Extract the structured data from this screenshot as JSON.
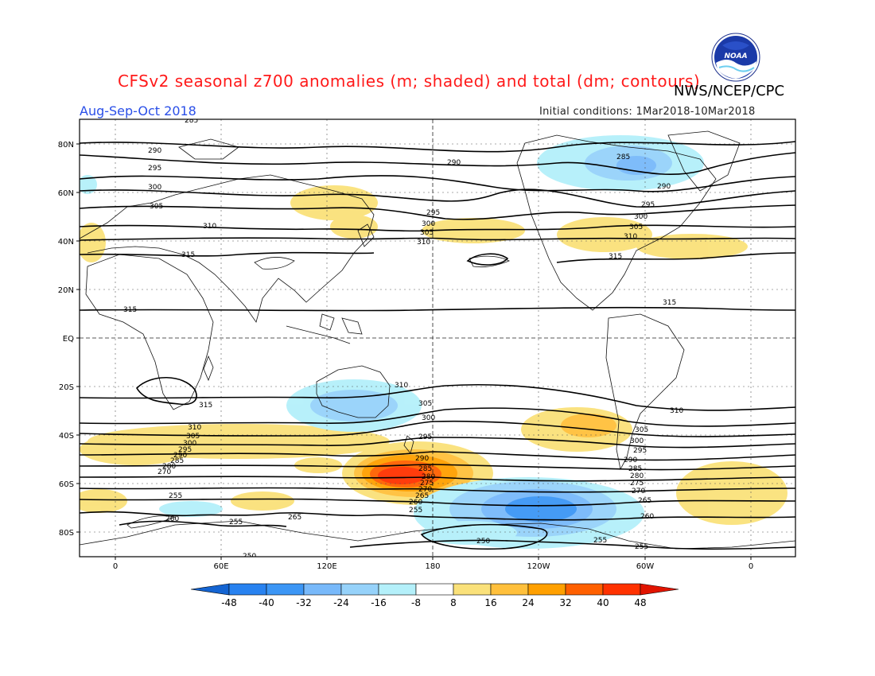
{
  "header": {
    "title": "CFSv2 seasonal z700 anomalies (m; shaded) and total (dm; contours)",
    "agency": "NWS/NCEP/CPC",
    "period": "Aug-Sep-Oct 2018",
    "initial_conditions": "Initial conditions: 1Mar2018-10Mar2018",
    "logo_text": "NOAA"
  },
  "axes": {
    "lat_labels": [
      "80N",
      "60N",
      "40N",
      "20N",
      "EQ",
      "20S",
      "40S",
      "60S",
      "80S"
    ],
    "lon_labels": [
      "0",
      "60E",
      "120E",
      "180",
      "120W",
      "60W",
      "0"
    ]
  },
  "colorbar": {
    "ticks": [
      "-48",
      "-40",
      "-32",
      "-24",
      "-16",
      "-8",
      "8",
      "16",
      "24",
      "32",
      "40",
      "48"
    ],
    "colors": [
      "#1464d2",
      "#2882f0",
      "#3c96f5",
      "#78b9fa",
      "#96d2fa",
      "#b4f0fa",
      "#ffffff",
      "#fae17a",
      "#ffc03c",
      "#ffa000",
      "#ff6000",
      "#ff3200",
      "#e11400"
    ]
  },
  "contour_labels": [
    "250",
    "255",
    "260",
    "265",
    "270",
    "275",
    "280",
    "285",
    "290",
    "295",
    "300",
    "305",
    "310",
    "315"
  ],
  "colors": {
    "title": "#ff1a1a",
    "period": "#2a4fe8",
    "positive_anomaly": "#fae17a",
    "negative_anomaly": "#96d2fa"
  }
}
